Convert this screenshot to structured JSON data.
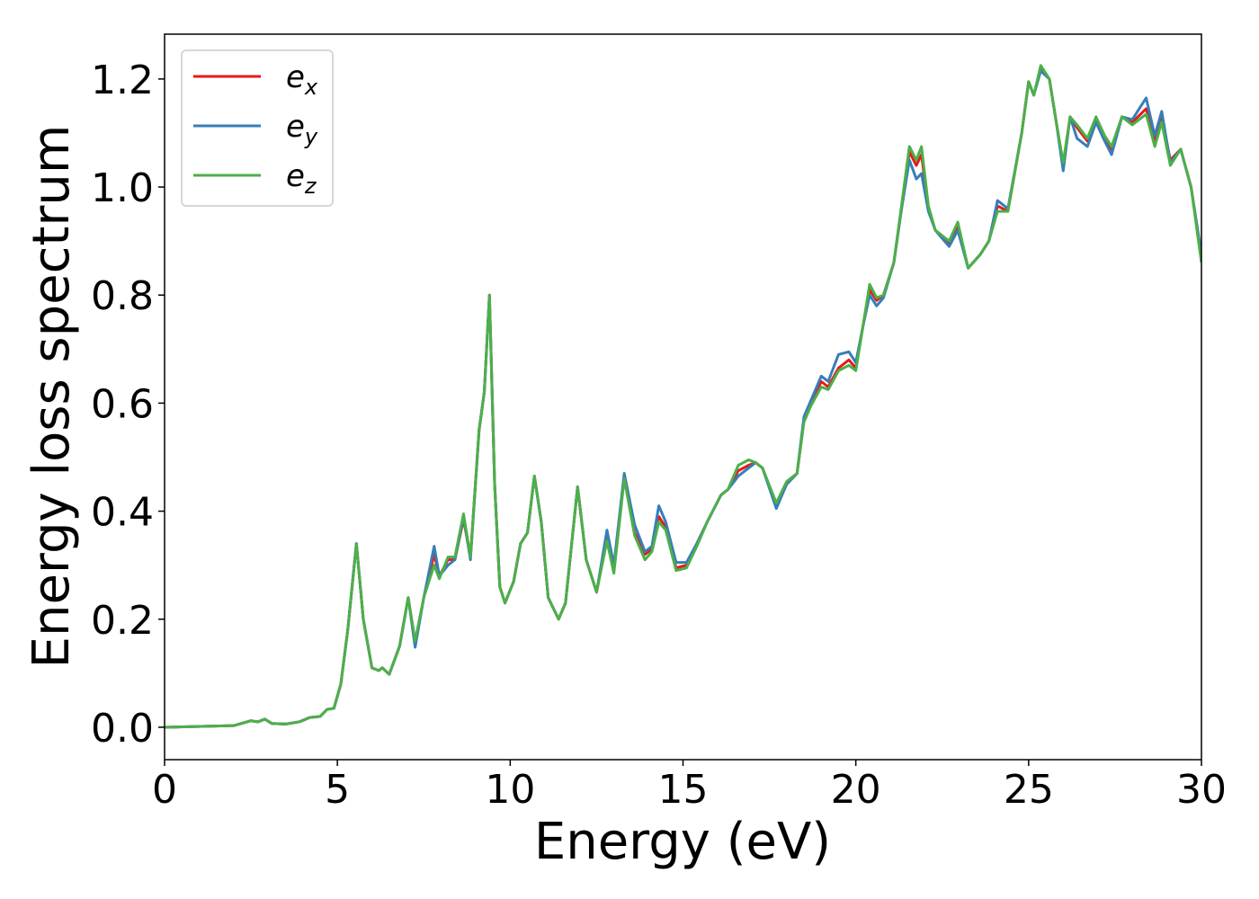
{
  "chart_data": {
    "type": "line",
    "xlabel": "Energy (eV)",
    "ylabel": "Energy loss spectrum",
    "xlim": [
      0,
      30
    ],
    "ylim": [
      -0.06,
      1.283
    ],
    "xticks": [
      0,
      5,
      10,
      15,
      20,
      25,
      30
    ],
    "yticks": [
      {
        "value": 0.0,
        "label": "0.0"
      },
      0.2,
      0.4,
      0.6,
      0.8,
      {
        "value": 1.0,
        "label": "1.0"
      },
      1.2
    ],
    "legend": "upper left",
    "x": [
      0,
      2,
      2.5,
      2.7,
      2.9,
      3.1,
      3.5,
      3.9,
      4.2,
      4.5,
      4.7,
      4.9,
      5.1,
      5.3,
      5.55,
      5.75,
      6.0,
      6.2,
      6.3,
      6.5,
      6.8,
      7.05,
      7.25,
      7.5,
      7.8,
      7.95,
      8.2,
      8.4,
      8.65,
      8.85,
      9.1,
      9.25,
      9.4,
      9.55,
      9.7,
      9.85,
      10.1,
      10.3,
      10.5,
      10.7,
      10.9,
      11.1,
      11.4,
      11.6,
      11.95,
      12.2,
      12.5,
      12.8,
      13.0,
      13.3,
      13.6,
      13.9,
      14.1,
      14.3,
      14.5,
      14.8,
      15.1,
      15.4,
      15.7,
      16.1,
      16.3,
      16.6,
      16.9,
      17.1,
      17.3,
      17.7,
      18.0,
      18.3,
      18.5,
      18.7,
      19.0,
      19.2,
      19.5,
      19.8,
      20.0,
      20.2,
      20.4,
      20.6,
      20.8,
      21.1,
      21.3,
      21.55,
      21.75,
      21.9,
      22.1,
      22.3,
      22.5,
      22.7,
      22.95,
      23.25,
      23.6,
      23.85,
      24.1,
      24.4,
      24.8,
      25.0,
      25.15,
      25.35,
      25.6,
      25.8,
      26.0,
      26.2,
      26.4,
      26.7,
      26.95,
      27.2,
      27.4,
      27.7,
      28.0,
      28.4,
      28.65,
      28.85,
      29.1,
      29.4,
      29.7,
      30.0
    ],
    "series": [
      {
        "name": "ex",
        "color": "#e41a1c",
        "values": [
          0,
          0.003,
          0.012,
          0.01,
          0.015,
          0.007,
          0.006,
          0.01,
          0.018,
          0.02,
          0.033,
          0.035,
          0.08,
          0.18,
          0.34,
          0.2,
          0.11,
          0.105,
          0.11,
          0.098,
          0.15,
          0.24,
          0.155,
          0.24,
          0.32,
          0.28,
          0.31,
          0.31,
          0.385,
          0.315,
          0.55,
          0.62,
          0.8,
          0.45,
          0.26,
          0.23,
          0.27,
          0.34,
          0.36,
          0.465,
          0.38,
          0.24,
          0.2,
          0.23,
          0.445,
          0.31,
          0.25,
          0.355,
          0.295,
          0.465,
          0.36,
          0.32,
          0.33,
          0.39,
          0.37,
          0.295,
          0.3,
          0.34,
          0.38,
          0.43,
          0.44,
          0.475,
          0.485,
          0.49,
          0.48,
          0.41,
          0.45,
          0.47,
          0.57,
          0.6,
          0.64,
          0.63,
          0.665,
          0.68,
          0.665,
          0.74,
          0.81,
          0.79,
          0.8,
          0.86,
          0.95,
          1.065,
          1.04,
          1.06,
          0.96,
          0.92,
          0.91,
          0.895,
          0.93,
          0.85,
          0.875,
          0.9,
          0.965,
          0.955,
          1.1,
          1.195,
          1.17,
          1.22,
          1.2,
          1.12,
          1.04,
          1.13,
          1.11,
          1.085,
          1.125,
          1.09,
          1.07,
          1.13,
          1.12,
          1.145,
          1.085,
          1.13,
          1.05,
          1.07,
          1.0,
          0.87
        ]
      },
      {
        "name": "ey",
        "color": "#377eb8",
        "values": [
          0,
          0.003,
          0.012,
          0.01,
          0.015,
          0.007,
          0.006,
          0.01,
          0.018,
          0.02,
          0.033,
          0.035,
          0.08,
          0.18,
          0.34,
          0.2,
          0.11,
          0.105,
          0.11,
          0.098,
          0.15,
          0.24,
          0.148,
          0.24,
          0.335,
          0.28,
          0.3,
          0.31,
          0.39,
          0.31,
          0.55,
          0.62,
          0.8,
          0.45,
          0.26,
          0.23,
          0.27,
          0.34,
          0.36,
          0.465,
          0.38,
          0.24,
          0.2,
          0.23,
          0.445,
          0.31,
          0.25,
          0.365,
          0.3,
          0.47,
          0.375,
          0.325,
          0.335,
          0.41,
          0.38,
          0.305,
          0.305,
          0.34,
          0.38,
          0.43,
          0.44,
          0.465,
          0.48,
          0.49,
          0.48,
          0.405,
          0.45,
          0.47,
          0.575,
          0.605,
          0.65,
          0.64,
          0.69,
          0.695,
          0.675,
          0.74,
          0.8,
          0.78,
          0.795,
          0.86,
          0.95,
          1.05,
          1.015,
          1.025,
          0.955,
          0.92,
          0.905,
          0.89,
          0.92,
          0.85,
          0.875,
          0.9,
          0.975,
          0.96,
          1.1,
          1.195,
          1.17,
          1.215,
          1.2,
          1.12,
          1.03,
          1.13,
          1.09,
          1.075,
          1.12,
          1.085,
          1.06,
          1.13,
          1.125,
          1.165,
          1.095,
          1.14,
          1.045,
          1.07,
          1.0,
          0.875
        ]
      },
      {
        "name": "ez",
        "color": "#4daf4a",
        "values": [
          0,
          0.003,
          0.012,
          0.01,
          0.015,
          0.007,
          0.006,
          0.01,
          0.018,
          0.02,
          0.033,
          0.035,
          0.08,
          0.18,
          0.34,
          0.2,
          0.11,
          0.105,
          0.11,
          0.098,
          0.15,
          0.24,
          0.16,
          0.24,
          0.3,
          0.275,
          0.315,
          0.315,
          0.395,
          0.315,
          0.55,
          0.62,
          0.8,
          0.45,
          0.26,
          0.23,
          0.27,
          0.34,
          0.36,
          0.465,
          0.38,
          0.24,
          0.2,
          0.23,
          0.445,
          0.31,
          0.25,
          0.345,
          0.285,
          0.46,
          0.355,
          0.31,
          0.325,
          0.38,
          0.365,
          0.29,
          0.295,
          0.335,
          0.38,
          0.43,
          0.44,
          0.485,
          0.495,
          0.49,
          0.48,
          0.415,
          0.455,
          0.47,
          0.565,
          0.595,
          0.63,
          0.625,
          0.66,
          0.67,
          0.66,
          0.74,
          0.82,
          0.795,
          0.8,
          0.86,
          0.955,
          1.075,
          1.05,
          1.075,
          0.965,
          0.92,
          0.91,
          0.9,
          0.935,
          0.85,
          0.875,
          0.9,
          0.955,
          0.955,
          1.1,
          1.195,
          1.17,
          1.225,
          1.2,
          1.12,
          1.045,
          1.13,
          1.115,
          1.09,
          1.13,
          1.095,
          1.075,
          1.13,
          1.115,
          1.135,
          1.075,
          1.12,
          1.04,
          1.07,
          1.0,
          0.86
        ]
      }
    ]
  }
}
